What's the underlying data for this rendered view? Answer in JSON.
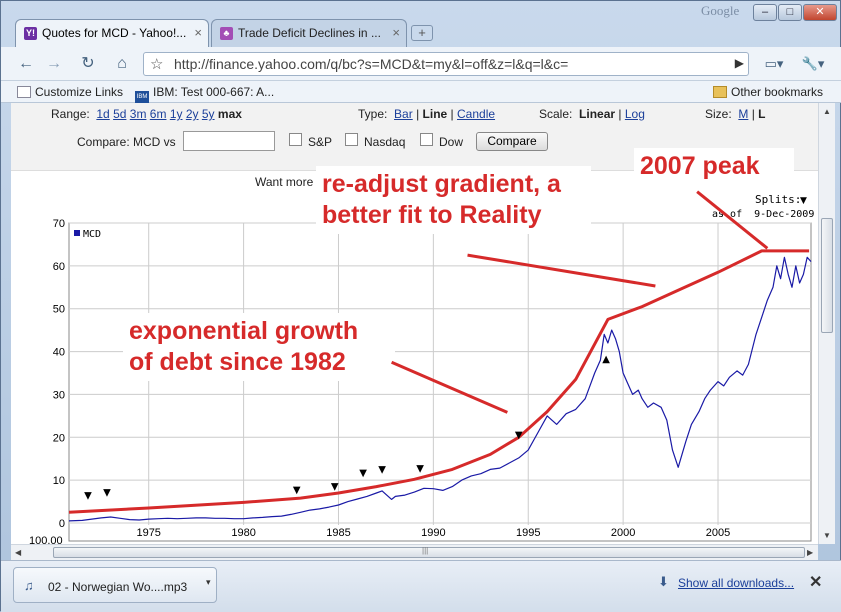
{
  "browser": {
    "brand": "Google",
    "tabs": [
      {
        "title": "Quotes for MCD - Yahoo!...",
        "icon": "yahoo-icon",
        "icon_label": "Y!"
      },
      {
        "title": "Trade Deficit Declines in ...",
        "icon": "trade-site-icon",
        "icon_label": "♣"
      }
    ],
    "new_tab_label": "+",
    "window_buttons": {
      "minimize": "–",
      "maximize": "□",
      "close": "✕"
    },
    "toolbar": {
      "back": "←",
      "forward": "→",
      "reload": "↻",
      "home": "⌂",
      "star": "☆",
      "go": "▶",
      "page_menu": "▭▾",
      "wrench": "🔧▾"
    },
    "url": "http://finance.yahoo.com/q/bc?s=MCD&t=my&l=off&z=l&q=l&c=",
    "bookmarks": [
      {
        "label": "Customize Links",
        "icon": "page-icon"
      },
      {
        "label": "IBM: Test 000-667: A...",
        "icon": "ibm-icon",
        "icon_label": "IBM"
      }
    ],
    "other_bookmarks": "Other bookmarks"
  },
  "controls": {
    "range_label": "Range:",
    "ranges": [
      "1d",
      "5d",
      "3m",
      "6m",
      "1y",
      "2y",
      "5y"
    ],
    "range_selected": "max",
    "type_label": "Type:",
    "types": {
      "bar": "Bar",
      "line": "Line",
      "candle": "Candle"
    },
    "scale_label": "Scale:",
    "scale_linear": "Linear",
    "scale_log": "Log",
    "size_label": "Size:",
    "size_m": "M",
    "size_l": "L",
    "compare_label": "Compare: MCD vs",
    "compare_value": "",
    "checkboxes": [
      "S&P",
      "Nasdaq",
      "Dow"
    ],
    "compare_button": "Compare",
    "want_more": "Want more",
    "separator": "|"
  },
  "chart_data": {
    "type": "line",
    "series": [
      {
        "name": "MCD",
        "color": "#1a1aa6",
        "x": [
          1970.8,
          1971.5,
          1972,
          1972.5,
          1973,
          1973.5,
          1974,
          1974.5,
          1975,
          1975.5,
          1976,
          1976.5,
          1977,
          1977.5,
          1978,
          1978.5,
          1979,
          1979.5,
          1980,
          1980.5,
          1981,
          1981.5,
          1982,
          1982.5,
          1983,
          1983.5,
          1984,
          1984.5,
          1985,
          1985.5,
          1986,
          1986.5,
          1987,
          1987.3,
          1987.8,
          1988,
          1988.5,
          1989,
          1989.5,
          1990,
          1990.5,
          1991,
          1991.5,
          1992,
          1992.5,
          1993,
          1993.5,
          1994,
          1994.5,
          1995,
          1995.5,
          1996,
          1996.5,
          1997,
          1997.5,
          1998,
          1998.5,
          1998.8,
          1999,
          1999.2,
          1999.4,
          1999.6,
          1999.8,
          2000,
          2000.2,
          2000.5,
          2000.8,
          2001,
          2001.3,
          2001.6,
          2002,
          2002.3,
          2002.6,
          2002.9,
          2003.1,
          2003.3,
          2003.6,
          2004,
          2004.3,
          2004.6,
          2005,
          2005.3,
          2005.6,
          2006,
          2006.3,
          2006.6,
          2007,
          2007.3,
          2007.6,
          2007.9,
          2008.1,
          2008.3,
          2008.5,
          2008.7,
          2008.9,
          2009.1,
          2009.3,
          2009.5,
          2009.7,
          2009.9
        ],
        "y": [
          0.5,
          0.6,
          0.9,
          1.2,
          1.4,
          1.1,
          0.8,
          0.7,
          0.9,
          1.0,
          1.1,
          1.0,
          1.1,
          1.2,
          1.2,
          1.1,
          1.1,
          1.0,
          1.0,
          1.2,
          1.3,
          1.5,
          1.6,
          2.0,
          2.5,
          3.0,
          3.3,
          3.7,
          4.2,
          5.0,
          5.6,
          6.2,
          7.0,
          7.5,
          5.5,
          6.2,
          6.5,
          7.2,
          8.1,
          8.0,
          7.6,
          8.5,
          10.0,
          11.0,
          11.5,
          12.5,
          12.8,
          14.0,
          15.2,
          17.0,
          21.0,
          25.0,
          23.0,
          25.5,
          26.5,
          29.0,
          35.0,
          38.0,
          44.0,
          42.0,
          45.0,
          43.0,
          40.0,
          35.0,
          33.0,
          30.0,
          31.0,
          29.0,
          27.0,
          28.0,
          27.0,
          24.0,
          17.0,
          13.0,
          16.0,
          19.0,
          23.0,
          26.0,
          29.0,
          31.0,
          33.0,
          32.0,
          34.0,
          35.5,
          34.5,
          37.0,
          44.0,
          48.0,
          52.0,
          55.0,
          60.0,
          57.0,
          62.0,
          58.0,
          55.0,
          60.0,
          56.0,
          58.0,
          62.0,
          61.0
        ]
      },
      {
        "name": "",
        "color": "#d62a2a",
        "x": [
          1970.8,
          1975,
          1980,
          1983,
          1985,
          1987,
          1989,
          1991,
          1993,
          1994.5,
          1996,
          1997.5,
          1999.2,
          2001,
          2003,
          2005,
          2007.3,
          2009.8
        ],
        "y": [
          2.5,
          3.5,
          4.8,
          5.8,
          7.0,
          8.5,
          10.2,
          12.5,
          16.0,
          20.0,
          26.0,
          33.5,
          47.5,
          50.5,
          54.5,
          58.5,
          63.5,
          63.5
        ]
      }
    ],
    "xlim": [
      1970.8,
      2009.9
    ],
    "ylim": [
      0,
      70
    ],
    "x_ticks": [
      1975,
      1980,
      1985,
      1990,
      1995,
      2000,
      2005
    ],
    "y_ticks": [
      0,
      10,
      20,
      30,
      40,
      50,
      60,
      70
    ],
    "lower_label": "100.00",
    "legend": "MCD",
    "splits_label": "Splits:",
    "splits_arrow": "▼",
    "as_of": "as of  9-Dec-2009",
    "split_markers": [
      {
        "x": 1971.8,
        "y": 6.7,
        "symbol": "▼"
      },
      {
        "x": 1972.8,
        "y": 7.3,
        "symbol": "▼"
      },
      {
        "x": 1982.8,
        "y": 7.9,
        "symbol": "▼"
      },
      {
        "x": 1984.8,
        "y": 8.7,
        "symbol": "▼"
      },
      {
        "x": 1986.3,
        "y": 11.9,
        "symbol": "▼"
      },
      {
        "x": 1987.3,
        "y": 12.7,
        "symbol": "▼"
      },
      {
        "x": 1989.3,
        "y": 13.0,
        "symbol": "▼"
      },
      {
        "x": 1994.5,
        "y": 20.8,
        "symbol": "▼"
      },
      {
        "x": 1999.1,
        "y": 38.5,
        "symbol": "▲"
      }
    ],
    "annotations": [
      {
        "lines": [
          "re-adjust gradient, a",
          "better fit to Reality"
        ],
        "pointer": [
          [
            1991.8,
            62.5
          ],
          [
            2001.7,
            55.3
          ]
        ]
      },
      {
        "lines": [
          "2007 peak"
        ],
        "pointer": [
          [
            2003.9,
            77.3
          ],
          [
            2007.6,
            64.1
          ]
        ]
      },
      {
        "lines": [
          "exponential growth",
          "of debt since 1982"
        ],
        "pointer": [
          [
            1987.8,
            37.5
          ],
          [
            1993.9,
            25.8
          ]
        ]
      }
    ]
  },
  "downloads": {
    "item": "02 - Norwegian Wo....mp3",
    "file_icon": "♫",
    "dropdown": "▾",
    "show_all": "Show all downloads...",
    "show_all_icon": "⬇",
    "close": "✕"
  },
  "scrollbar": {
    "grip": "|||",
    "up": "▲",
    "down": "▼",
    "left": "◀",
    "right": "▶"
  }
}
